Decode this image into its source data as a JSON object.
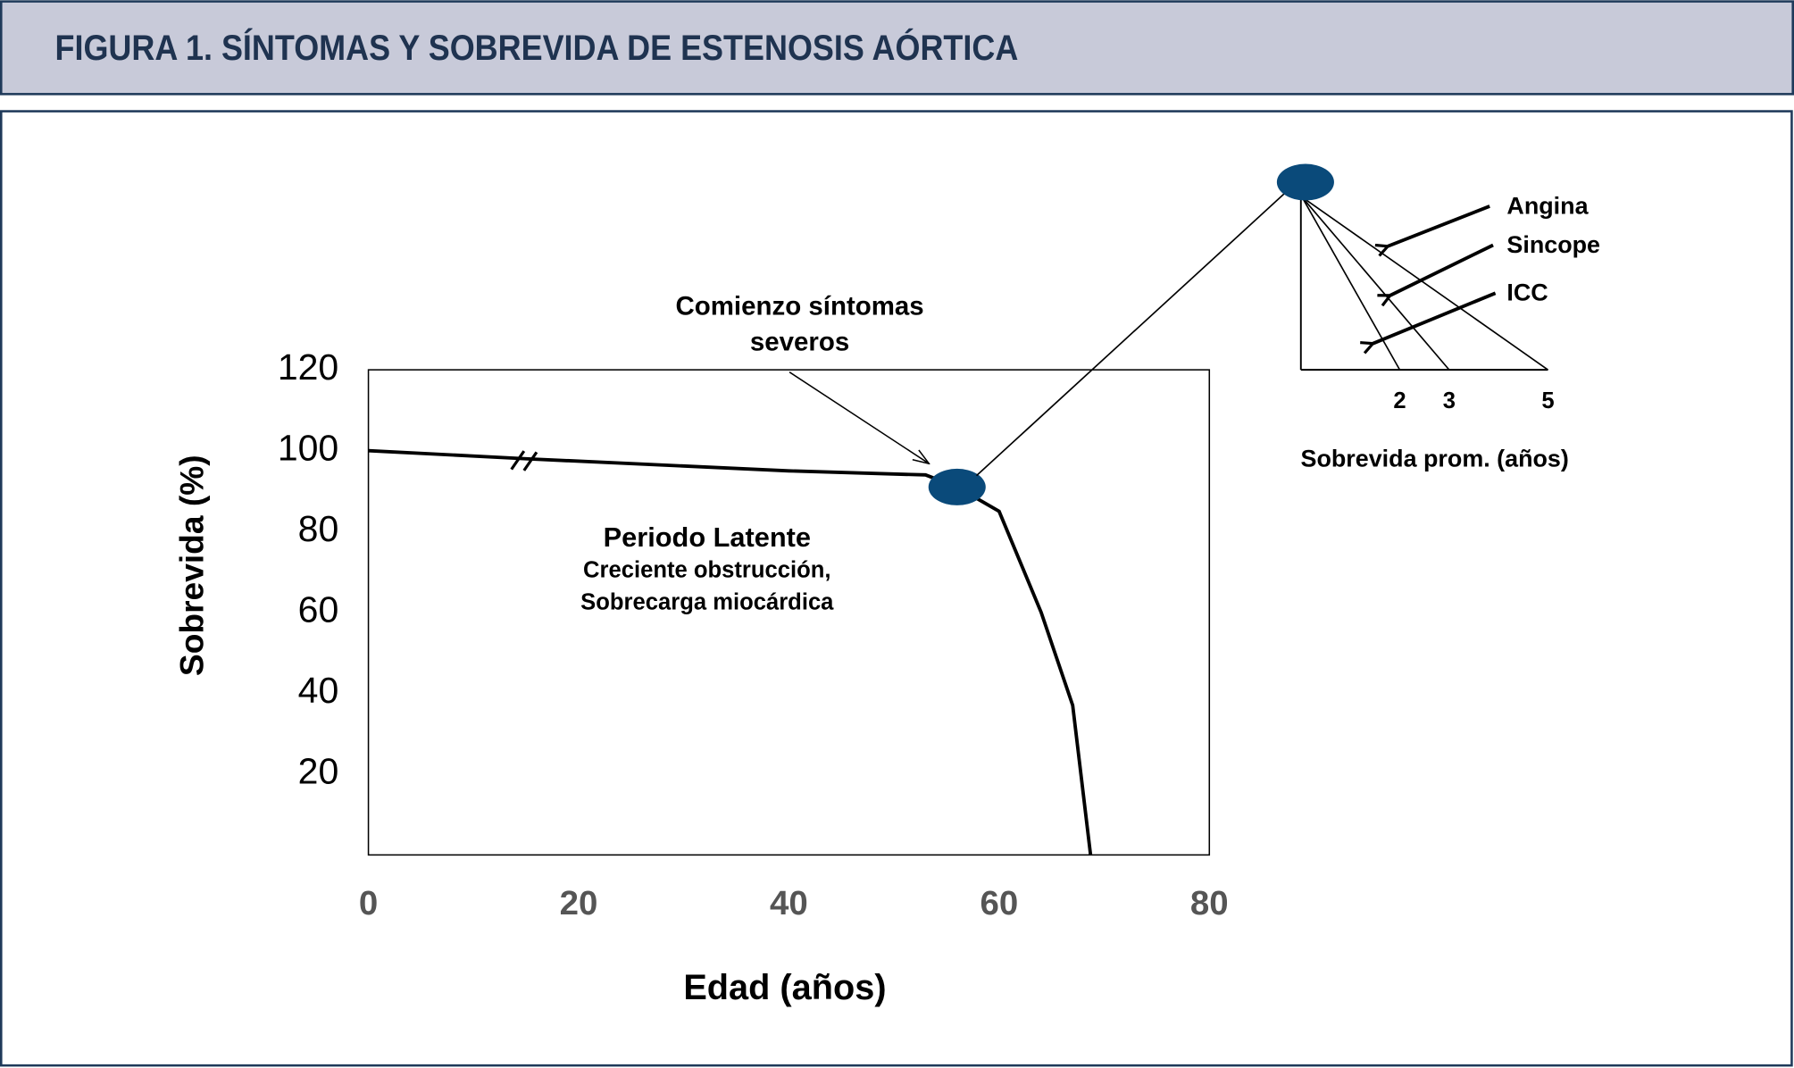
{
  "chart_data": [
    {
      "type": "line",
      "title": "FIGURA 1. SÍNTOMAS Y SOBREVIDA DE ESTENOSIS AÓRTICA",
      "x_label": "Edad (años)",
      "y_label": "Sobrevida (%)",
      "onset_label": [
        "Comienzo síntomas",
        "severos"
      ],
      "latent_label": [
        "Periodo Latente",
        "Creciente obstrucción,",
        "Sobrecarga miocárdica"
      ],
      "x": [
        0,
        15,
        40,
        53,
        56,
        60,
        64,
        67,
        68.7
      ],
      "values": [
        100,
        98,
        95,
        94,
        91,
        85,
        60,
        37,
        0
      ],
      "onset_index": 4,
      "color": "#000000",
      "marker_color": "#0a4a7a",
      "xlim": [
        0,
        80
      ],
      "ylim": [
        0,
        120
      ],
      "xticks": [
        0,
        20,
        40,
        60,
        80
      ],
      "yticks": [
        20,
        40,
        60,
        80,
        100,
        120
      ]
    },
    {
      "type": "fan",
      "categories": [
        "Angina",
        "Sincope",
        "ICC"
      ],
      "values": [
        5,
        3,
        2
      ],
      "xlim": [
        0,
        5
      ],
      "xticks": [
        2,
        3,
        5
      ],
      "x_label": "Sobrevida prom. (años)"
    }
  ]
}
